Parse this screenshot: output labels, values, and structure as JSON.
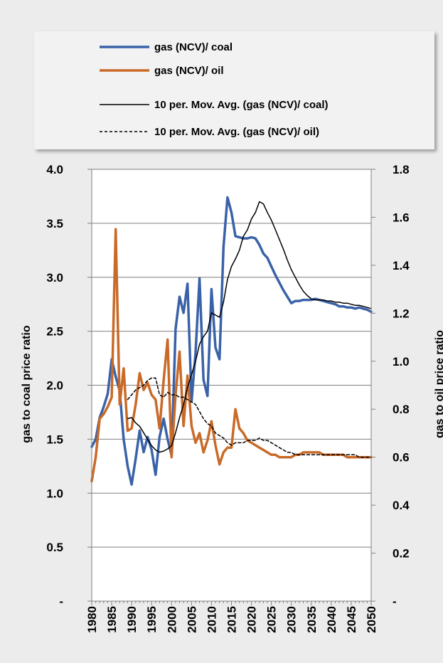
{
  "chart_data": {
    "type": "line",
    "x_ticks": [
      1980,
      1985,
      1990,
      1995,
      2000,
      2005,
      2010,
      2015,
      2020,
      2025,
      2030,
      2035,
      2040,
      2045,
      2050
    ],
    "xlim": [
      1980,
      2050
    ],
    "y_left": {
      "label": "gas to coal price ratio",
      "ylim": [
        0,
        4.0
      ],
      "ticks": [
        0,
        0.5,
        1.0,
        1.5,
        2.0,
        2.5,
        3.0,
        3.5,
        4.0
      ],
      "tick_labels": [
        "-",
        "0.5",
        "1.0",
        "1.5",
        "2.0",
        "2.5",
        "3.0",
        "3.5",
        "4.0"
      ]
    },
    "y_right": {
      "label": "gas to oil price ratio",
      "ylim": [
        0,
        1.8
      ],
      "ticks": [
        0,
        0.2,
        0.4,
        0.6,
        0.8,
        1.0,
        1.2,
        1.4,
        1.6,
        1.8
      ],
      "tick_labels": [
        "-",
        "0.2",
        "0.4",
        "0.6",
        "0.8",
        "1.0",
        "1.2",
        "1.4",
        "1.6",
        "1.8"
      ]
    },
    "grid": true,
    "legend_position": "top",
    "series": [
      {
        "name": "gas (NCV)/ coal",
        "axis": "left",
        "color": "#3a62a8",
        "style": "solid-thick",
        "points": [
          [
            1980,
            1.43
          ],
          [
            1981,
            1.5
          ],
          [
            1982,
            1.7
          ],
          [
            1983,
            1.8
          ],
          [
            1984,
            1.92
          ],
          [
            1985,
            2.24
          ],
          [
            1986,
            2.08
          ],
          [
            1987,
            1.95
          ],
          [
            1988,
            1.5
          ],
          [
            1989,
            1.25
          ],
          [
            1990,
            1.08
          ],
          [
            1991,
            1.32
          ],
          [
            1992,
            1.58
          ],
          [
            1993,
            1.38
          ],
          [
            1994,
            1.52
          ],
          [
            1995,
            1.4
          ],
          [
            1996,
            1.17
          ],
          [
            1997,
            1.52
          ],
          [
            1998,
            1.69
          ],
          [
            1999,
            1.5
          ],
          [
            2000,
            1.35
          ],
          [
            2001,
            2.52
          ],
          [
            2002,
            2.82
          ],
          [
            2003,
            2.67
          ],
          [
            2004,
            2.94
          ],
          [
            2005,
            1.85
          ],
          [
            2006,
            2.3
          ],
          [
            2007,
            2.99
          ],
          [
            2008,
            2.05
          ],
          [
            2009,
            1.9
          ],
          [
            2010,
            2.89
          ],
          [
            2011,
            2.35
          ],
          [
            2012,
            2.24
          ],
          [
            2013,
            3.28
          ],
          [
            2014,
            3.74
          ],
          [
            2015,
            3.6
          ],
          [
            2016,
            3.38
          ],
          [
            2017,
            3.37
          ],
          [
            2018,
            3.36
          ],
          [
            2019,
            3.36
          ],
          [
            2020,
            3.37
          ],
          [
            2021,
            3.36
          ],
          [
            2022,
            3.3
          ],
          [
            2023,
            3.22
          ],
          [
            2024,
            3.18
          ],
          [
            2025,
            3.1
          ],
          [
            2026,
            3.02
          ],
          [
            2027,
            2.95
          ],
          [
            2028,
            2.88
          ],
          [
            2029,
            2.82
          ],
          [
            2030,
            2.76
          ],
          [
            2031,
            2.78
          ],
          [
            2032,
            2.78
          ],
          [
            2033,
            2.79
          ],
          [
            2034,
            2.79
          ],
          [
            2035,
            2.79
          ],
          [
            2036,
            2.8
          ],
          [
            2037,
            2.79
          ],
          [
            2038,
            2.78
          ],
          [
            2039,
            2.77
          ],
          [
            2040,
            2.76
          ],
          [
            2041,
            2.75
          ],
          [
            2042,
            2.73
          ],
          [
            2043,
            2.73
          ],
          [
            2044,
            2.72
          ],
          [
            2045,
            2.72
          ],
          [
            2046,
            2.71
          ],
          [
            2047,
            2.72
          ],
          [
            2048,
            2.71
          ],
          [
            2049,
            2.7
          ],
          [
            2050,
            2.68
          ]
        ]
      },
      {
        "name": "gas (NCV)/ oil",
        "axis": "right",
        "color": "#c96a28",
        "style": "solid-thick",
        "points": [
          [
            1980,
            0.5
          ],
          [
            1981,
            0.6
          ],
          [
            1982,
            0.76
          ],
          [
            1983,
            0.78
          ],
          [
            1984,
            0.81
          ],
          [
            1985,
            0.85
          ],
          [
            1986,
            1.55
          ],
          [
            1987,
            0.82
          ],
          [
            1988,
            0.97
          ],
          [
            1989,
            0.71
          ],
          [
            1990,
            0.72
          ],
          [
            1991,
            0.82
          ],
          [
            1992,
            0.95
          ],
          [
            1993,
            0.88
          ],
          [
            1994,
            0.91
          ],
          [
            1995,
            0.86
          ],
          [
            1996,
            0.84
          ],
          [
            1997,
            0.72
          ],
          [
            1998,
            0.92
          ],
          [
            1999,
            1.09
          ],
          [
            2000,
            0.6
          ],
          [
            2001,
            0.86
          ],
          [
            2002,
            1.04
          ],
          [
            2003,
            0.73
          ],
          [
            2004,
            0.94
          ],
          [
            2005,
            0.73
          ],
          [
            2006,
            0.66
          ],
          [
            2007,
            0.7
          ],
          [
            2008,
            0.62
          ],
          [
            2009,
            0.67
          ],
          [
            2010,
            0.75
          ],
          [
            2011,
            0.65
          ],
          [
            2012,
            0.57
          ],
          [
            2013,
            0.62
          ],
          [
            2014,
            0.64
          ],
          [
            2015,
            0.64
          ],
          [
            2016,
            0.8
          ],
          [
            2017,
            0.72
          ],
          [
            2018,
            0.7
          ],
          [
            2019,
            0.67
          ],
          [
            2020,
            0.66
          ],
          [
            2021,
            0.65
          ],
          [
            2022,
            0.64
          ],
          [
            2023,
            0.63
          ],
          [
            2024,
            0.62
          ],
          [
            2025,
            0.61
          ],
          [
            2026,
            0.61
          ],
          [
            2027,
            0.6
          ],
          [
            2028,
            0.6
          ],
          [
            2029,
            0.6
          ],
          [
            2030,
            0.6
          ],
          [
            2031,
            0.61
          ],
          [
            2032,
            0.61
          ],
          [
            2033,
            0.62
          ],
          [
            2034,
            0.62
          ],
          [
            2035,
            0.62
          ],
          [
            2036,
            0.62
          ],
          [
            2037,
            0.62
          ],
          [
            2038,
            0.61
          ],
          [
            2039,
            0.61
          ],
          [
            2040,
            0.61
          ],
          [
            2041,
            0.61
          ],
          [
            2042,
            0.61
          ],
          [
            2043,
            0.61
          ],
          [
            2044,
            0.6
          ],
          [
            2045,
            0.6
          ],
          [
            2046,
            0.6
          ],
          [
            2047,
            0.6
          ],
          [
            2048,
            0.6
          ],
          [
            2049,
            0.6
          ],
          [
            2050,
            0.6
          ]
        ]
      },
      {
        "name": "10 per. Mov. Avg. (gas (NCV)/ coal)",
        "axis": "left",
        "color": "#000000",
        "style": "solid-thin",
        "points": [
          [
            1989,
            1.69
          ],
          [
            1990,
            1.7
          ],
          [
            1991,
            1.65
          ],
          [
            1992,
            1.62
          ],
          [
            1993,
            1.56
          ],
          [
            1994,
            1.5
          ],
          [
            1995,
            1.44
          ],
          [
            1996,
            1.4
          ],
          [
            1997,
            1.38
          ],
          [
            1998,
            1.39
          ],
          [
            1999,
            1.41
          ],
          [
            2000,
            1.44
          ],
          [
            2001,
            1.56
          ],
          [
            2002,
            1.7
          ],
          [
            2003,
            1.82
          ],
          [
            2004,
            1.98
          ],
          [
            2005,
            2.1
          ],
          [
            2006,
            2.22
          ],
          [
            2007,
            2.38
          ],
          [
            2008,
            2.45
          ],
          [
            2009,
            2.5
          ],
          [
            2010,
            2.67
          ],
          [
            2011,
            2.65
          ],
          [
            2012,
            2.63
          ],
          [
            2013,
            2.77
          ],
          [
            2014,
            2.98
          ],
          [
            2015,
            3.1
          ],
          [
            2016,
            3.17
          ],
          [
            2017,
            3.25
          ],
          [
            2018,
            3.38
          ],
          [
            2019,
            3.44
          ],
          [
            2020,
            3.54
          ],
          [
            2021,
            3.6
          ],
          [
            2022,
            3.7
          ],
          [
            2023,
            3.68
          ],
          [
            2024,
            3.6
          ],
          [
            2025,
            3.53
          ],
          [
            2026,
            3.44
          ],
          [
            2027,
            3.35
          ],
          [
            2028,
            3.26
          ],
          [
            2029,
            3.16
          ],
          [
            2030,
            3.07
          ],
          [
            2031,
            3.0
          ],
          [
            2032,
            2.93
          ],
          [
            2033,
            2.87
          ],
          [
            2034,
            2.83
          ],
          [
            2035,
            2.8
          ],
          [
            2036,
            2.79
          ],
          [
            2037,
            2.79
          ],
          [
            2038,
            2.79
          ],
          [
            2039,
            2.78
          ],
          [
            2040,
            2.78
          ],
          [
            2041,
            2.77
          ],
          [
            2042,
            2.77
          ],
          [
            2043,
            2.76
          ],
          [
            2044,
            2.76
          ],
          [
            2045,
            2.75
          ],
          [
            2046,
            2.74
          ],
          [
            2047,
            2.74
          ],
          [
            2048,
            2.73
          ],
          [
            2049,
            2.72
          ],
          [
            2050,
            2.71
          ]
        ]
      },
      {
        "name": "10 per. Mov. Avg. (gas (NCV)/ oil)",
        "axis": "right",
        "color": "#000000",
        "style": "dashed",
        "points": [
          [
            1989,
            0.84
          ],
          [
            1990,
            0.86
          ],
          [
            1991,
            0.88
          ],
          [
            1992,
            0.89
          ],
          [
            1993,
            0.9
          ],
          [
            1994,
            0.92
          ],
          [
            1995,
            0.93
          ],
          [
            1996,
            0.93
          ],
          [
            1997,
            0.86
          ],
          [
            1998,
            0.85
          ],
          [
            1999,
            0.87
          ],
          [
            2000,
            0.86
          ],
          [
            2001,
            0.86
          ],
          [
            2002,
            0.85
          ],
          [
            2003,
            0.85
          ],
          [
            2004,
            0.84
          ],
          [
            2005,
            0.83
          ],
          [
            2006,
            0.82
          ],
          [
            2007,
            0.79
          ],
          [
            2008,
            0.76
          ],
          [
            2009,
            0.74
          ],
          [
            2010,
            0.73
          ],
          [
            2011,
            0.7
          ],
          [
            2012,
            0.69
          ],
          [
            2013,
            0.68
          ],
          [
            2014,
            0.66
          ],
          [
            2015,
            0.65
          ],
          [
            2016,
            0.66
          ],
          [
            2017,
            0.66
          ],
          [
            2018,
            0.66
          ],
          [
            2019,
            0.67
          ],
          [
            2020,
            0.67
          ],
          [
            2021,
            0.67
          ],
          [
            2022,
            0.68
          ],
          [
            2023,
            0.67
          ],
          [
            2024,
            0.67
          ],
          [
            2025,
            0.66
          ],
          [
            2026,
            0.65
          ],
          [
            2027,
            0.64
          ],
          [
            2028,
            0.63
          ],
          [
            2029,
            0.62
          ],
          [
            2030,
            0.62
          ],
          [
            2031,
            0.61
          ],
          [
            2032,
            0.61
          ],
          [
            2033,
            0.61
          ],
          [
            2034,
            0.61
          ],
          [
            2035,
            0.61
          ],
          [
            2036,
            0.61
          ],
          [
            2037,
            0.61
          ],
          [
            2038,
            0.61
          ],
          [
            2039,
            0.61
          ],
          [
            2040,
            0.61
          ],
          [
            2041,
            0.61
          ],
          [
            2042,
            0.61
          ],
          [
            2043,
            0.61
          ],
          [
            2044,
            0.61
          ],
          [
            2045,
            0.61
          ],
          [
            2046,
            0.61
          ],
          [
            2047,
            0.6
          ],
          [
            2048,
            0.6
          ],
          [
            2049,
            0.6
          ],
          [
            2050,
            0.6
          ]
        ]
      }
    ]
  }
}
